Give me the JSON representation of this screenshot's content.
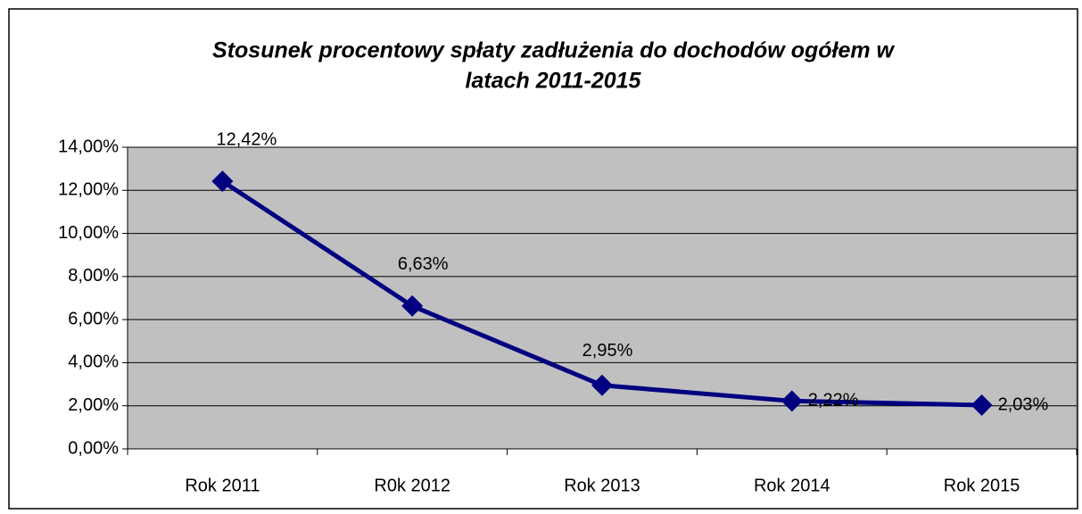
{
  "chart_data": {
    "type": "line",
    "title": [
      "Stosunek procentowy spłaty zadłużenia do dochodów ogółem w",
      "latach 2011-2015"
    ],
    "categories": [
      "Rok 2011",
      "R0k 2012",
      "Rok 2013",
      "Rok 2014",
      "Rok 2015"
    ],
    "series": [
      {
        "color": "#000080",
        "values": [
          12.42,
          6.63,
          2.95,
          2.22,
          2.03
        ],
        "value_labels": [
          "12,42%",
          "6,63%",
          "2,95%",
          "2,22%",
          "2,03%"
        ]
      }
    ],
    "ylim": [
      0,
      14
    ],
    "yticks": [
      {
        "value": 0,
        "label": "0,00%"
      },
      {
        "value": 2,
        "label": "2,00%"
      },
      {
        "value": 4,
        "label": "4,00%"
      },
      {
        "value": 6,
        "label": "6,00%"
      },
      {
        "value": 8,
        "label": "8,00%"
      },
      {
        "value": 10,
        "label": "10,00%"
      },
      {
        "value": 12,
        "label": "12,00%"
      },
      {
        "value": 14,
        "label": "14,00%"
      }
    ],
    "grid": true,
    "plot_background": "#c0c0c0"
  }
}
